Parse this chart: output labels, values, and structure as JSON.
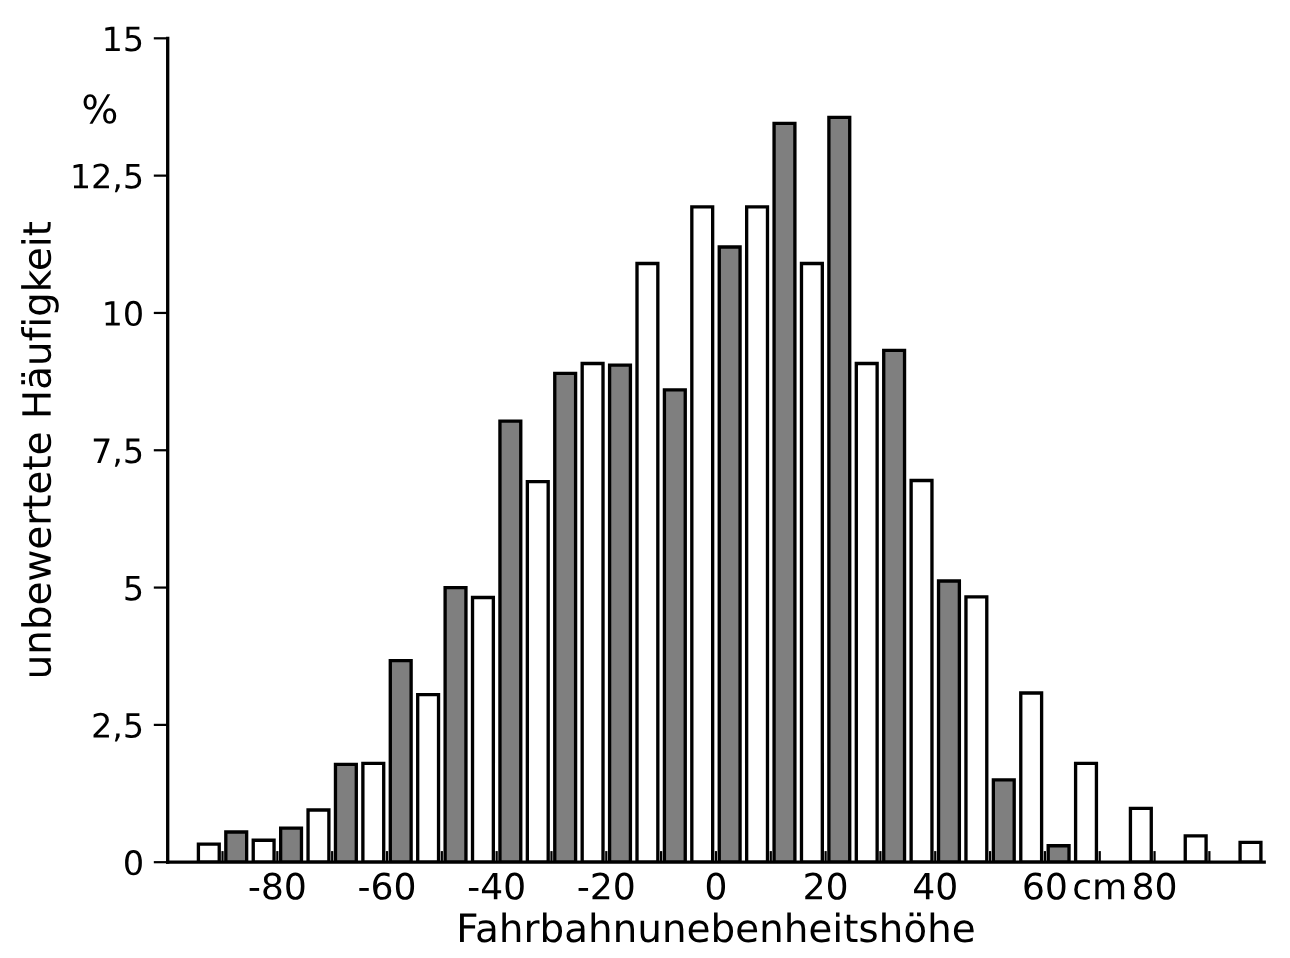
{
  "chart_data": {
    "type": "bar",
    "xlabel": "Fahrbahnunebenheitshöhe",
    "ylabel": "unbewertete Häufigkeit",
    "annotations": [
      "%"
    ],
    "series": [
      {
        "color": "#7f7f7f",
        "values": [
          null,
          0.55,
          0.62,
          1.78,
          3.67,
          5.0,
          8.03,
          8.9,
          9.05,
          8.6,
          11.2,
          13.45,
          13.56,
          9.32,
          5.12,
          1.5,
          0.3,
          null,
          null,
          null
        ]
      },
      {
        "color": "#ffffff",
        "values": [
          0.33,
          0.4,
          0.95,
          1.8,
          3.05,
          4.82,
          6.93,
          9.08,
          10.9,
          11.93,
          11.93,
          10.9,
          9.08,
          6.95,
          4.83,
          3.08,
          1.8,
          0.98,
          0.48,
          0.36
        ]
      }
    ],
    "x": [
      -95,
      -85,
      -75,
      -65,
      -55,
      -45,
      -35,
      -25,
      -15,
      -5,
      5,
      15,
      25,
      35,
      45,
      55,
      65,
      75,
      85,
      95
    ],
    "xlim": [
      -100,
      100
    ],
    "xticks": [
      {
        "value": -90,
        "label": null
      },
      -80,
      {
        "value": -70,
        "label": null
      },
      -60,
      {
        "value": -50,
        "label": null
      },
      -40,
      {
        "value": -30,
        "label": null
      },
      -20,
      {
        "value": -10,
        "label": null
      },
      0,
      {
        "value": 10,
        "label": null
      },
      20,
      {
        "value": 30,
        "label": null
      },
      40,
      {
        "value": 50,
        "label": null
      },
      60,
      {
        "value": 70,
        "label": "cm"
      },
      80,
      {
        "value": 90,
        "label": null
      }
    ],
    "ylim": [
      0,
      15
    ],
    "yticks": [
      0,
      {
        "value": 2.5,
        "label": "2,5"
      },
      5,
      {
        "value": 7.5,
        "label": "7,5"
      },
      10,
      {
        "value": 12.5,
        "label": "12,5"
      },
      15
    ],
    "grid": false,
    "legend": false
  }
}
